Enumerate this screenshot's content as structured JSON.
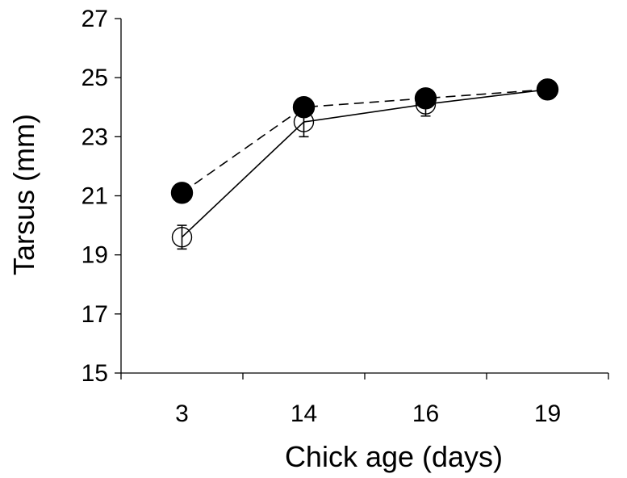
{
  "chart_data": {
    "type": "line",
    "xlabel": "Chick age (days)",
    "ylabel": "Tarsus (mm)",
    "categories": [
      "3",
      "14",
      "16",
      "19"
    ],
    "ylim": [
      15,
      27
    ],
    "yticks": [
      15,
      17,
      19,
      21,
      23,
      25,
      27
    ],
    "grid": false,
    "series": [
      {
        "marker": "open-circle",
        "line_style": "solid",
        "values": [
          19.6,
          23.5,
          24.1,
          24.6
        ],
        "error": [
          0.4,
          0.5,
          0.4,
          0.3
        ]
      },
      {
        "marker": "filled-circle",
        "line_style": "dashed",
        "values": [
          21.1,
          24.0,
          24.3,
          24.6
        ],
        "error": [
          0.3,
          0.2,
          0.2,
          0.3
        ]
      }
    ]
  }
}
